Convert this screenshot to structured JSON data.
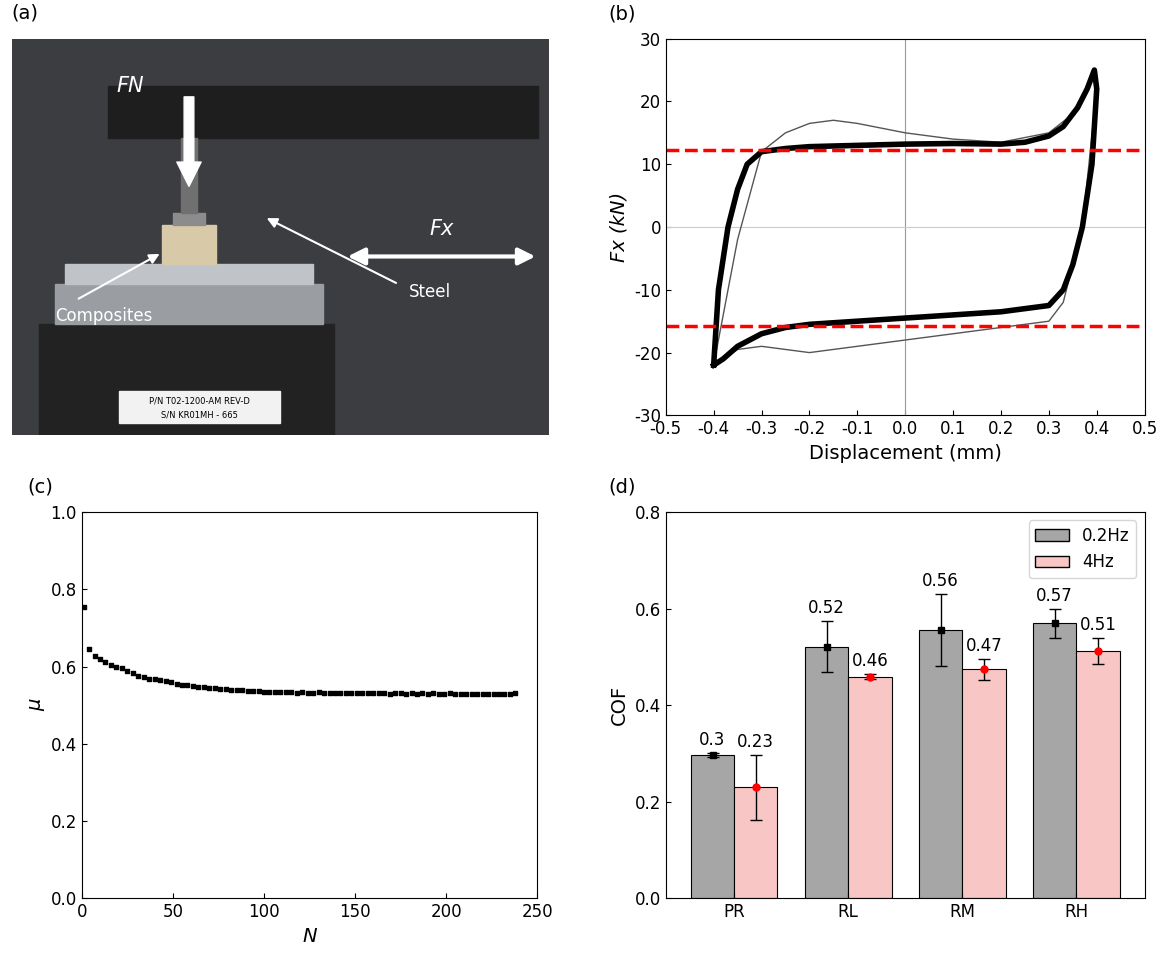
{
  "chart_data": [
    {
      "type": "photo",
      "title": "(a)",
      "labels": {
        "force_normal": "FN",
        "steel": "Steel",
        "composites": "Composites",
        "force_x": "Fx",
        "plate_line1": "P/N T02-1200-AM REV-D",
        "plate_line2": "S/N KR01MH - 665"
      }
    },
    {
      "type": "line",
      "title": "(b)",
      "x_label": "Displacement (mm)",
      "y_label": "Fx (kN)",
      "xlim": [
        -0.5,
        0.5
      ],
      "xticks": [
        -0.5,
        -0.4,
        -0.3,
        -0.2,
        -0.1,
        {
          "value": 0.0,
          "label": "0.0"
        },
        0.1,
        0.2,
        0.3,
        0.4,
        0.5
      ],
      "ylim": [
        -30,
        30
      ],
      "yticks": [
        -30,
        -20,
        -10,
        0,
        10,
        20,
        30
      ],
      "reference_lines": {
        "x": [
          0
        ],
        "y": [
          0
        ]
      },
      "hlines": {
        "values": [
          12.3,
          -15.8
        ],
        "color": "#ff0000",
        "line_style": "dashed"
      },
      "series": [
        {
          "color": "#555555",
          "x": [
            -0.4,
            -0.35,
            -0.3,
            -0.25,
            -0.2,
            -0.15,
            -0.1,
            0,
            0.1,
            0.2,
            0.3,
            0.35,
            0.39,
            0.4,
            0.37,
            0.33,
            0.3,
            0.2,
            0.1,
            0,
            -0.1,
            -0.2,
            -0.3,
            -0.35,
            -0.38,
            -0.4
          ],
          "values": [
            -22,
            -2,
            12,
            15,
            16.5,
            17,
            16.5,
            15,
            14,
            13.5,
            15,
            18,
            24,
            22,
            0,
            -12,
            -15,
            -16,
            -17,
            -18,
            -19,
            -20,
            -19,
            -19.5,
            -21,
            -22
          ]
        },
        {
          "color": "#000000",
          "x": [
            -0.4,
            -0.39,
            -0.37,
            -0.35,
            -0.33,
            -0.3,
            -0.25,
            -0.2,
            -0.1,
            0,
            0.1,
            0.2,
            0.25,
            0.3,
            0.33,
            0.36,
            0.38,
            0.395,
            0.4,
            0.39,
            0.37,
            0.35,
            0.33,
            0.3,
            0.25,
            0.2,
            0.1,
            0,
            -0.1,
            -0.2,
            -0.25,
            -0.3,
            -0.35,
            -0.38,
            -0.4
          ],
          "values": [
            -22,
            -10,
            0,
            6,
            10,
            12,
            12.5,
            12.8,
            13,
            13.2,
            13.3,
            13.2,
            13.5,
            14.5,
            16,
            19,
            22,
            25,
            22,
            10,
            0,
            -6,
            -10,
            -12.5,
            -13,
            -13.5,
            -14,
            -14.5,
            -15,
            -15.5,
            -16,
            -17,
            -19,
            -21,
            -22
          ]
        }
      ]
    },
    {
      "type": "scatter",
      "title": "(c)",
      "x_label": "N",
      "y_label": "μ",
      "xlim": [
        0,
        250
      ],
      "xticks": [
        0,
        50,
        100,
        150,
        200,
        250
      ],
      "ylim": [
        0,
        1.0
      ],
      "yticks": [
        {
          "value": 0.0,
          "label": "0.0"
        },
        0.2,
        0.4,
        0.6,
        0.8,
        {
          "value": 1.0,
          "label": "1.0"
        }
      ],
      "color": "#000000",
      "marker": "square",
      "x": [
        1,
        4,
        7,
        10,
        13,
        16,
        19,
        22,
        25,
        28,
        31,
        34,
        37,
        40,
        43,
        46,
        49,
        52,
        55,
        58,
        61,
        64,
        67,
        70,
        73,
        76,
        79,
        82,
        85,
        88,
        91,
        94,
        97,
        100,
        103,
        106,
        109,
        112,
        115,
        118,
        121,
        124,
        127,
        130,
        133,
        136,
        139,
        142,
        145,
        148,
        151,
        154,
        157,
        160,
        163,
        166,
        169,
        172,
        175,
        178,
        181,
        184,
        187,
        190,
        193,
        196,
        199,
        202,
        205,
        208,
        211,
        214,
        217,
        220,
        223,
        226,
        229,
        232,
        235,
        238
      ],
      "values": [
        0.755,
        0.645,
        0.628,
        0.62,
        0.612,
        0.605,
        0.598,
        0.595,
        0.588,
        0.582,
        0.576,
        0.572,
        0.569,
        0.567,
        0.565,
        0.562,
        0.559,
        0.556,
        0.553,
        0.551,
        0.549,
        0.548,
        0.546,
        0.545,
        0.544,
        0.542,
        0.541,
        0.54,
        0.539,
        0.538,
        0.537,
        0.536,
        0.536,
        0.535,
        0.534,
        0.533,
        0.534,
        0.533,
        0.533,
        0.532,
        0.533,
        0.532,
        0.532,
        0.533,
        0.532,
        0.531,
        0.532,
        0.532,
        0.531,
        0.532,
        0.531,
        0.532,
        0.531,
        0.531,
        0.532,
        0.531,
        0.53,
        0.531,
        0.531,
        0.53,
        0.531,
        0.53,
        0.531,
        0.53,
        0.531,
        0.53,
        0.53,
        0.531,
        0.53,
        0.53,
        0.529,
        0.53,
        0.53,
        0.529,
        0.53,
        0.53,
        0.529,
        0.53,
        0.53,
        0.531
      ]
    },
    {
      "type": "bar",
      "title": "(d)",
      "y_label": "COF",
      "categories": [
        "PR",
        "RL",
        "RM",
        "RH"
      ],
      "ylim": [
        0,
        0.8
      ],
      "yticks": [
        {
          "value": 0.0,
          "label": "0.0"
        },
        0.2,
        0.4,
        0.6,
        0.8
      ],
      "legend": "upper right",
      "data_labels": true,
      "series": [
        {
          "name": "0.2Hz",
          "color": "#a6a6a6",
          "marker": "square",
          "values": [
            0.297,
            0.521,
            0.556,
            0.57
          ],
          "value_labels": [
            "0.3",
            "0.52",
            "0.56",
            "0.57"
          ],
          "errors": [
            0.005,
            0.053,
            0.075,
            0.03
          ]
        },
        {
          "name": "4Hz",
          "color": "#f9c6c6",
          "marker": "circle",
          "values": [
            0.23,
            0.459,
            0.474,
            0.512
          ],
          "value_labels": [
            "0.23",
            "0.46",
            "0.47",
            "0.51"
          ],
          "errors": [
            0.067,
            0.005,
            0.022,
            0.027
          ]
        }
      ]
    }
  ]
}
